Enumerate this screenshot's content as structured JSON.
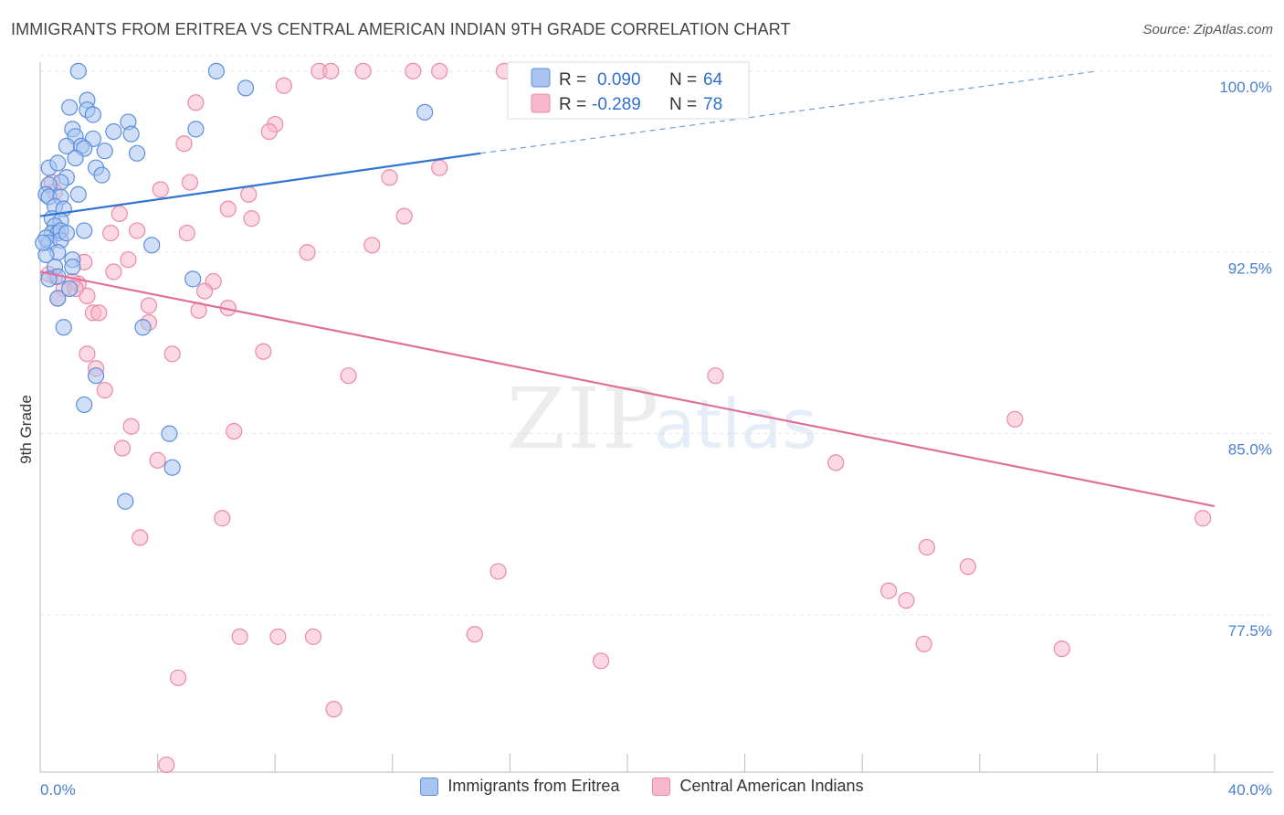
{
  "header": {
    "title": "IMMIGRANTS FROM ERITREA VS CENTRAL AMERICAN INDIAN 9TH GRADE CORRELATION CHART",
    "source": "Source: ZipAtlas.com"
  },
  "watermark": "ZIPatlas",
  "colors": {
    "blue_fill": "#a9c4f0",
    "blue_stroke": "#5b8fdc",
    "blue_line": "#2f74d0",
    "pink_fill": "#f7b8cb",
    "pink_stroke": "#e98aa8",
    "pink_line": "#e0709a",
    "tick_text": "#4a7fd0"
  },
  "stats": {
    "r_label": "R =",
    "n_label": "N =",
    "series": [
      {
        "r": "0.090",
        "n": "64"
      },
      {
        "r": "-0.289",
        "n": "78"
      }
    ]
  },
  "legend": {
    "items": [
      {
        "label": "Immigrants from Eritrea"
      },
      {
        "label": "Central American Indians"
      }
    ]
  },
  "chart_data": {
    "type": "scatter",
    "title": "IMMIGRANTS FROM ERITREA VS CENTRAL AMERICAN INDIAN 9TH GRADE CORRELATION CHART",
    "xlabel": "",
    "ylabel": "9th Grade",
    "xlim": [
      0,
      40
    ],
    "ylim": [
      71.0,
      100.6
    ],
    "x_tick_labels": [
      "0.0%",
      "40.0%"
    ],
    "y_ticks": [
      77.5,
      85.0,
      92.5,
      100.0
    ],
    "y_tick_labels": [
      "77.5%",
      "85.0%",
      "92.5%",
      "100.0%"
    ],
    "grid": "horizontal dashed",
    "legend_position": "bottom",
    "series": [
      {
        "name": "Immigrants from Eritrea",
        "r": 0.09,
        "n": 64,
        "trend": {
          "x": [
            0.0,
            15.0
          ],
          "y": [
            94.0,
            96.6
          ],
          "dashed_extension": {
            "x": [
              15.0,
              36.0
            ],
            "y": [
              96.6,
              100.0
            ]
          }
        },
        "points": [
          [
            1.3,
            100.0
          ],
          [
            6.0,
            100.0
          ],
          [
            7.0,
            99.3
          ],
          [
            13.1,
            98.3
          ],
          [
            1.6,
            98.8
          ],
          [
            1.6,
            98.4
          ],
          [
            1.0,
            98.5
          ],
          [
            1.8,
            98.2
          ],
          [
            3.0,
            97.9
          ],
          [
            1.1,
            97.6
          ],
          [
            2.5,
            97.5
          ],
          [
            3.1,
            97.4
          ],
          [
            5.3,
            97.6
          ],
          [
            1.2,
            97.3
          ],
          [
            1.8,
            97.2
          ],
          [
            0.9,
            96.9
          ],
          [
            1.4,
            96.9
          ],
          [
            1.5,
            96.8
          ],
          [
            2.2,
            96.7
          ],
          [
            3.3,
            96.6
          ],
          [
            1.2,
            96.4
          ],
          [
            0.3,
            96.0
          ],
          [
            1.9,
            96.0
          ],
          [
            2.1,
            95.7
          ],
          [
            0.6,
            96.2
          ],
          [
            0.9,
            95.6
          ],
          [
            0.7,
            95.4
          ],
          [
            0.3,
            95.3
          ],
          [
            0.2,
            94.9
          ],
          [
            0.3,
            94.8
          ],
          [
            1.3,
            94.9
          ],
          [
            0.7,
            94.8
          ],
          [
            0.5,
            94.4
          ],
          [
            0.8,
            94.3
          ],
          [
            0.4,
            93.9
          ],
          [
            0.7,
            93.8
          ],
          [
            0.5,
            93.6
          ],
          [
            0.4,
            93.3
          ],
          [
            0.6,
            93.3
          ],
          [
            0.7,
            93.4
          ],
          [
            1.5,
            93.4
          ],
          [
            0.2,
            93.1
          ],
          [
            0.3,
            92.9
          ],
          [
            0.7,
            93.0
          ],
          [
            3.8,
            92.8
          ],
          [
            0.6,
            92.5
          ],
          [
            0.2,
            92.4
          ],
          [
            1.1,
            92.2
          ],
          [
            0.5,
            91.9
          ],
          [
            1.1,
            91.9
          ],
          [
            0.6,
            91.5
          ],
          [
            5.2,
            91.4
          ],
          [
            0.3,
            91.4
          ],
          [
            1.0,
            91.0
          ],
          [
            0.6,
            90.6
          ],
          [
            0.8,
            89.4
          ],
          [
            3.5,
            89.4
          ],
          [
            1.9,
            87.4
          ],
          [
            1.5,
            86.2
          ],
          [
            4.4,
            85.0
          ],
          [
            4.5,
            83.6
          ],
          [
            2.9,
            82.2
          ],
          [
            0.1,
            92.9
          ],
          [
            0.9,
            93.3
          ]
        ]
      },
      {
        "name": "Central American Indians",
        "r": -0.289,
        "n": 78,
        "trend": {
          "x": [
            0.0,
            40.0
          ],
          "y": [
            91.7,
            82.0
          ]
        },
        "points": [
          [
            9.5,
            100.0
          ],
          [
            9.9,
            100.0
          ],
          [
            11.0,
            100.0
          ],
          [
            12.7,
            100.0
          ],
          [
            13.6,
            100.0
          ],
          [
            15.8,
            100.0
          ],
          [
            22.5,
            100.0
          ],
          [
            8.3,
            99.4
          ],
          [
            5.3,
            98.7
          ],
          [
            8.0,
            97.8
          ],
          [
            7.8,
            97.5
          ],
          [
            4.9,
            97.0
          ],
          [
            13.6,
            96.0
          ],
          [
            11.9,
            95.6
          ],
          [
            5.1,
            95.4
          ],
          [
            4.1,
            95.1
          ],
          [
            7.1,
            94.9
          ],
          [
            6.4,
            94.3
          ],
          [
            2.7,
            94.1
          ],
          [
            12.4,
            94.0
          ],
          [
            7.2,
            93.9
          ],
          [
            3.3,
            93.4
          ],
          [
            2.4,
            93.3
          ],
          [
            5.0,
            93.3
          ],
          [
            11.3,
            92.8
          ],
          [
            9.1,
            92.5
          ],
          [
            0.4,
            95.4
          ],
          [
            0.5,
            95.0
          ],
          [
            1.5,
            92.1
          ],
          [
            3.0,
            92.2
          ],
          [
            2.5,
            91.7
          ],
          [
            5.9,
            91.3
          ],
          [
            1.3,
            91.2
          ],
          [
            0.5,
            91.5
          ],
          [
            1.1,
            91.3
          ],
          [
            0.8,
            91.0
          ],
          [
            5.6,
            90.9
          ],
          [
            1.6,
            90.7
          ],
          [
            0.6,
            90.6
          ],
          [
            3.7,
            90.3
          ],
          [
            5.4,
            90.1
          ],
          [
            6.4,
            90.2
          ],
          [
            1.8,
            90.0
          ],
          [
            3.7,
            89.6
          ],
          [
            7.6,
            88.4
          ],
          [
            1.6,
            88.3
          ],
          [
            4.5,
            88.3
          ],
          [
            1.9,
            87.7
          ],
          [
            10.5,
            87.4
          ],
          [
            23.0,
            87.4
          ],
          [
            2.2,
            86.8
          ],
          [
            33.2,
            85.6
          ],
          [
            3.1,
            85.3
          ],
          [
            6.6,
            85.1
          ],
          [
            2.8,
            84.4
          ],
          [
            4.0,
            83.9
          ],
          [
            27.1,
            83.8
          ],
          [
            6.2,
            81.5
          ],
          [
            39.6,
            81.5
          ],
          [
            3.4,
            80.7
          ],
          [
            30.2,
            80.3
          ],
          [
            31.6,
            79.5
          ],
          [
            15.6,
            79.3
          ],
          [
            28.9,
            78.5
          ],
          [
            29.5,
            78.1
          ],
          [
            6.8,
            76.6
          ],
          [
            8.1,
            76.6
          ],
          [
            9.3,
            76.6
          ],
          [
            14.8,
            76.7
          ],
          [
            30.1,
            76.3
          ],
          [
            34.8,
            76.1
          ],
          [
            19.1,
            75.6
          ],
          [
            4.7,
            74.9
          ],
          [
            10.0,
            73.6
          ],
          [
            4.3,
            71.3
          ],
          [
            1.2,
            91.0
          ],
          [
            2.0,
            90.0
          ],
          [
            0.3,
            91.6
          ]
        ]
      }
    ]
  }
}
